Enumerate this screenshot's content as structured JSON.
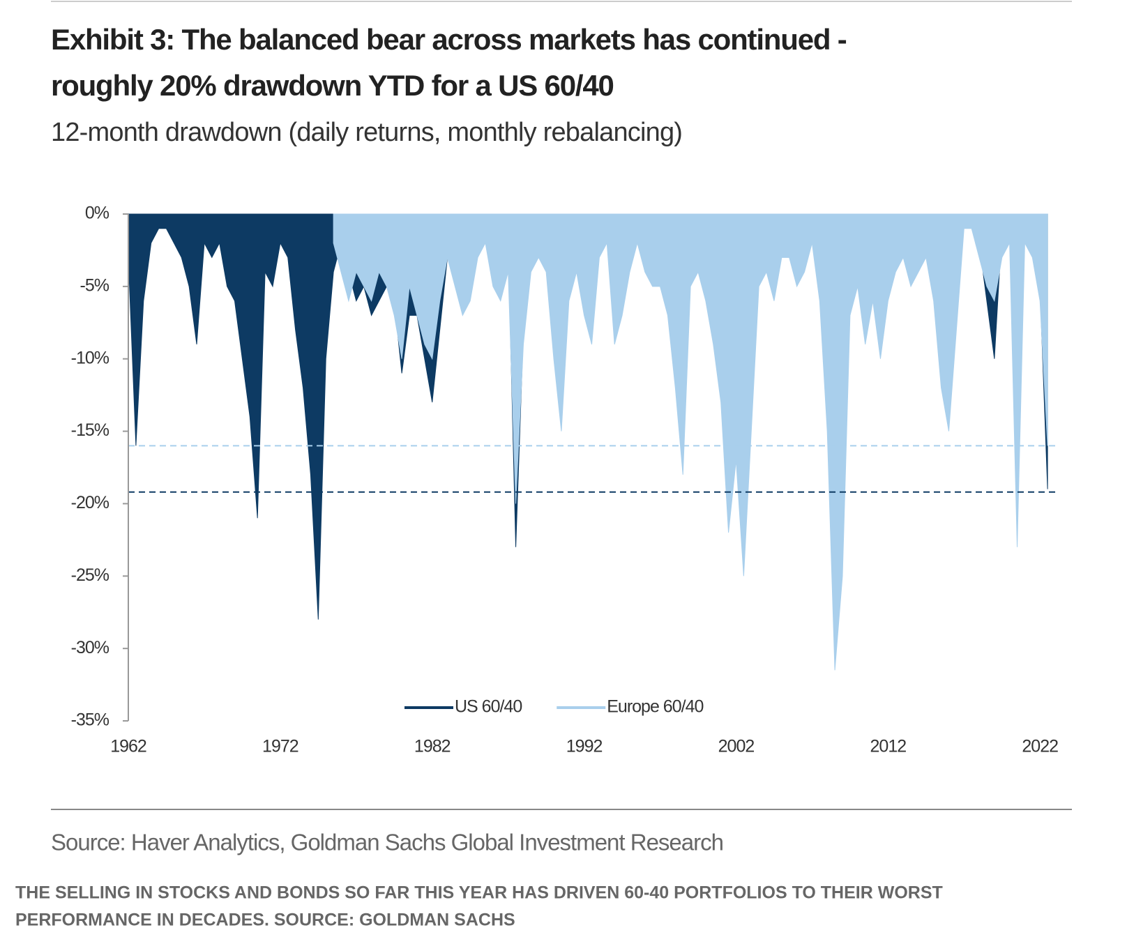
{
  "chart_data": {
    "type": "area",
    "title": [
      "Exhibit 3: The balanced bear across markets has continued -",
      "roughly 20% drawdown YTD for a US 60/40"
    ],
    "subtitle": "12-month drawdown (daily returns, monthly rebalancing)",
    "source": "Source: Haver Analytics, Goldman Sachs Global Investment Research",
    "caption": [
      "THE SELLING IN STOCKS AND BONDS SO FAR THIS YEAR HAS DRIVEN 60-40 PORTFOLIOS TO THEIR WORST",
      "PERFORMANCE IN DECADES. SOURCE: GOLDMAN SACHS"
    ],
    "x": [
      1962,
      1962.5,
      1963,
      1963.5,
      1964,
      1964.5,
      1965,
      1965.5,
      1966,
      1966.5,
      1967,
      1967.5,
      1968,
      1968.5,
      1969,
      1969.5,
      1970,
      1970.5,
      1971,
      1971.5,
      1972,
      1972.5,
      1973,
      1973.5,
      1974,
      1974.5,
      1975,
      1975.5,
      1976,
      1976.5,
      1977,
      1977.5,
      1978,
      1978.5,
      1979,
      1979.5,
      1980,
      1980.5,
      1981,
      1981.5,
      1982,
      1982.5,
      1983,
      1983.5,
      1984,
      1984.5,
      1985,
      1985.5,
      1986,
      1986.5,
      1987,
      1987.5,
      1988,
      1988.5,
      1989,
      1989.5,
      1990,
      1990.5,
      1991,
      1991.5,
      1992,
      1992.5,
      1993,
      1993.5,
      1994,
      1994.5,
      1995,
      1995.5,
      1996,
      1996.5,
      1997,
      1997.5,
      1998,
      1998.5,
      1999,
      1999.5,
      2000,
      2000.5,
      2001,
      2001.5,
      2002,
      2002.5,
      2003,
      2003.5,
      2004,
      2004.5,
      2005,
      2005.5,
      2006,
      2006.5,
      2007,
      2007.5,
      2008,
      2008.5,
      2009,
      2009.5,
      2010,
      2010.5,
      2011,
      2011.5,
      2012,
      2012.5,
      2013,
      2013.5,
      2014,
      2014.5,
      2015,
      2015.5,
      2016,
      2016.5,
      2017,
      2017.5,
      2018,
      2018.5,
      2019,
      2019.5,
      2020,
      2020.5,
      2021,
      2021.5,
      2022,
      2022.5
    ],
    "series": [
      {
        "name": "US 60/40",
        "color": "#0d3a63",
        "values": [
          -3,
          -16,
          -6,
          -2,
          -1,
          -1,
          -2,
          -3,
          -5,
          -9,
          -2,
          -3,
          -2,
          -5,
          -6,
          -10,
          -14,
          -21,
          -4,
          -5,
          -2,
          -3,
          -8,
          -12,
          -18,
          -28,
          -10,
          -4,
          -2,
          -4,
          -6,
          -5,
          -7,
          -6,
          -5,
          -6,
          -11,
          -7,
          -7,
          -10,
          -13,
          -8,
          -3,
          -4,
          -6,
          -5,
          -2,
          -1,
          -3,
          -4,
          -2,
          -23,
          -8,
          -3,
          -1,
          -2,
          -5,
          -7,
          -3,
          -1,
          -2,
          -2,
          -1,
          -1,
          -4,
          -5,
          -1,
          -1,
          -2,
          -3,
          -3,
          -4,
          -7,
          -6,
          -2,
          -4,
          -4,
          -7,
          -8,
          -12,
          -9,
          -14,
          -5,
          -1,
          -1,
          -2,
          -2,
          -1,
          -2,
          -2,
          -1,
          -4,
          -8,
          -20,
          -14,
          -4,
          -3,
          -6,
          -2,
          -7,
          -3,
          -2,
          -1,
          -2,
          -1,
          -1,
          -1,
          -3,
          -4,
          -1,
          0,
          0,
          -2,
          -6,
          -10,
          -1,
          -1,
          -15,
          -1,
          -1,
          -5,
          -19
        ]
      },
      {
        "name": "Europe 60/40",
        "color": "#a9cfec",
        "values": [
          null,
          null,
          null,
          null,
          null,
          null,
          null,
          null,
          null,
          null,
          null,
          null,
          null,
          null,
          null,
          null,
          null,
          null,
          null,
          null,
          null,
          null,
          null,
          null,
          null,
          null,
          null,
          -2,
          -4,
          -6,
          -4,
          -5,
          -6,
          -4,
          -5,
          -7,
          -10,
          -5,
          -7,
          -9,
          -10,
          -6,
          -3,
          -5,
          -7,
          -6,
          -3,
          -2,
          -5,
          -6,
          -4,
          -20,
          -9,
          -4,
          -3,
          -4,
          -10,
          -15,
          -6,
          -4,
          -7,
          -9,
          -3,
          -2,
          -9,
          -7,
          -4,
          -2,
          -4,
          -5,
          -5,
          -7,
          -12,
          -18,
          -5,
          -4,
          -6,
          -9,
          -13,
          -22,
          -17,
          -25,
          -15,
          -5,
          -4,
          -6,
          -3,
          -3,
          -5,
          -4,
          -2,
          -6,
          -15,
          -31.5,
          -25,
          -7,
          -5,
          -9,
          -6,
          -10,
          -6,
          -4,
          -3,
          -5,
          -4,
          -3,
          -6,
          -12,
          -15,
          -8,
          -1,
          -1,
          -3,
          -5,
          -6,
          -3,
          -2,
          -23,
          -2,
          -3,
          -6,
          -16
        ]
      }
    ],
    "reference_lines": [
      {
        "value": -16,
        "color": "#a9cfec"
      },
      {
        "value": -19.2,
        "color": "#0d3a63"
      }
    ],
    "xlim": [
      1962,
      2023
    ],
    "xticks": [
      1962,
      1972,
      1982,
      1992,
      2002,
      2012,
      2022
    ],
    "ylim": [
      -35,
      0
    ],
    "yticks": [
      {
        "value": 0,
        "label": "0%"
      },
      {
        "value": -5,
        "label": "-5%"
      },
      {
        "value": -10,
        "label": "-10%"
      },
      {
        "value": -15,
        "label": "-15%"
      },
      {
        "value": -20,
        "label": "-20%"
      },
      {
        "value": -25,
        "label": "-25%"
      },
      {
        "value": -30,
        "label": "-30%"
      },
      {
        "value": -35,
        "label": "-35%"
      }
    ]
  }
}
